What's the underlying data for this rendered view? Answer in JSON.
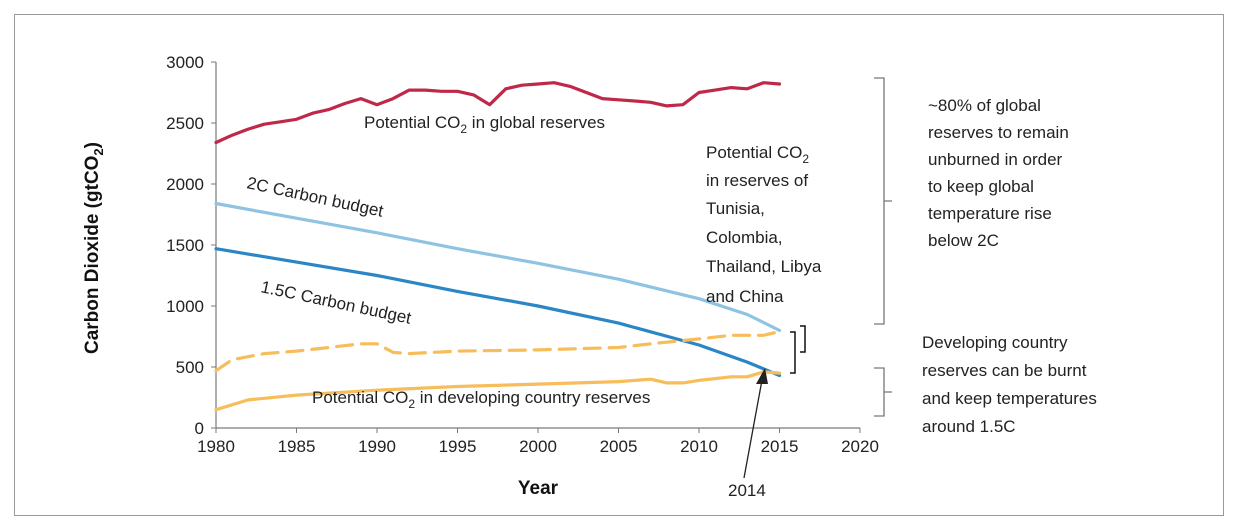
{
  "chart_data": {
    "type": "line",
    "title": "",
    "xlabel": "Year",
    "ylabel": "Carbon Dioxide (gtCO",
    "ylabel_sub": "2",
    "ylabel_tail": ")",
    "xlim": [
      1980,
      2020
    ],
    "ylim": [
      0,
      3000
    ],
    "xticks": [
      1980,
      1985,
      1990,
      1995,
      2000,
      2005,
      2010,
      2015,
      2020
    ],
    "yticks": [
      0,
      500,
      1000,
      1500,
      2000,
      2500,
      3000
    ],
    "grid": false,
    "series": [
      {
        "name": "Potential CO2 in global reserves",
        "color": "#c0284a",
        "style": "solid",
        "points": [
          [
            1980,
            2340
          ],
          [
            1981,
            2400
          ],
          [
            1982,
            2450
          ],
          [
            1983,
            2490
          ],
          [
            1984,
            2510
          ],
          [
            1985,
            2530
          ],
          [
            1986,
            2580
          ],
          [
            1987,
            2610
          ],
          [
            1988,
            2660
          ],
          [
            1989,
            2700
          ],
          [
            1990,
            2650
          ],
          [
            1991,
            2700
          ],
          [
            1992,
            2770
          ],
          [
            1993,
            2770
          ],
          [
            1994,
            2760
          ],
          [
            1995,
            2760
          ],
          [
            1996,
            2730
          ],
          [
            1997,
            2650
          ],
          [
            1998,
            2780
          ],
          [
            1999,
            2810
          ],
          [
            2000,
            2820
          ],
          [
            2001,
            2830
          ],
          [
            2002,
            2800
          ],
          [
            2003,
            2750
          ],
          [
            2004,
            2700
          ],
          [
            2005,
            2690
          ],
          [
            2006,
            2680
          ],
          [
            2007,
            2670
          ],
          [
            2008,
            2640
          ],
          [
            2009,
            2650
          ],
          [
            2010,
            2750
          ],
          [
            2011,
            2770
          ],
          [
            2012,
            2790
          ],
          [
            2013,
            2780
          ],
          [
            2014,
            2830
          ],
          [
            2015,
            2820
          ]
        ]
      },
      {
        "name": "2C Carbon budget",
        "color": "#8fc3e3",
        "style": "solid",
        "points": [
          [
            1980,
            1840
          ],
          [
            1985,
            1720
          ],
          [
            1990,
            1600
          ],
          [
            1995,
            1470
          ],
          [
            2000,
            1350
          ],
          [
            2005,
            1220
          ],
          [
            2010,
            1060
          ],
          [
            2013,
            930
          ],
          [
            2015,
            800
          ]
        ]
      },
      {
        "name": "1.5C Carbon budget",
        "color": "#2a86c5",
        "style": "solid",
        "points": [
          [
            1980,
            1470
          ],
          [
            1985,
            1360
          ],
          [
            1990,
            1250
          ],
          [
            1995,
            1120
          ],
          [
            2000,
            1000
          ],
          [
            2005,
            860
          ],
          [
            2010,
            680
          ],
          [
            2013,
            540
          ],
          [
            2015,
            430
          ]
        ]
      },
      {
        "name": "Potential CO2 in reserves of Tunisia, Colombia, Thailand, Libya and China",
        "color": "#f7bd5a",
        "style": "dashed",
        "points": [
          [
            1980,
            470
          ],
          [
            1981,
            560
          ],
          [
            1983,
            610
          ],
          [
            1985,
            630
          ],
          [
            1987,
            660
          ],
          [
            1989,
            690
          ],
          [
            1990,
            690
          ],
          [
            1991,
            620
          ],
          [
            1992,
            610
          ],
          [
            1995,
            630
          ],
          [
            2000,
            640
          ],
          [
            2005,
            660
          ],
          [
            2007,
            690
          ],
          [
            2010,
            730
          ],
          [
            2012,
            760
          ],
          [
            2014,
            760
          ],
          [
            2015,
            790
          ]
        ]
      },
      {
        "name": "Potential CO2 in developing country reserves",
        "color": "#f7bd5a",
        "style": "solid",
        "points": [
          [
            1980,
            150
          ],
          [
            1982,
            230
          ],
          [
            1985,
            270
          ],
          [
            1990,
            310
          ],
          [
            1995,
            340
          ],
          [
            2000,
            360
          ],
          [
            2005,
            380
          ],
          [
            2007,
            400
          ],
          [
            2008,
            370
          ],
          [
            2009,
            370
          ],
          [
            2010,
            390
          ],
          [
            2012,
            420
          ],
          [
            2013,
            420
          ],
          [
            2014,
            460
          ],
          [
            2015,
            450
          ]
        ]
      }
    ],
    "annotations": {
      "global_reserves": {
        "text": "Potential CO",
        "sub": "2",
        "tail": " in global reserves"
      },
      "budget_2c": "2C Carbon budget",
      "budget_15c": "1.5C Carbon budget",
      "developing": {
        "text": "Potential CO",
        "sub": "2",
        "tail": " in developing country reserves"
      },
      "countries": {
        "line1": "Potential CO",
        "line1_sub": "2",
        "lines": [
          "in reserves of",
          "Tunisia,",
          "Colombia,",
          "Thailand, Libya",
          "and China"
        ]
      },
      "year_2014": "2014",
      "side_top": [
        "~80% of global",
        "reserves to remain",
        "unburned in order",
        "to keep global",
        "temperature  rise",
        "below 2C"
      ],
      "side_bottom": [
        "Developing country",
        "reserves can be burnt",
        "and keep temperatures",
        "around 1.5C"
      ]
    }
  }
}
